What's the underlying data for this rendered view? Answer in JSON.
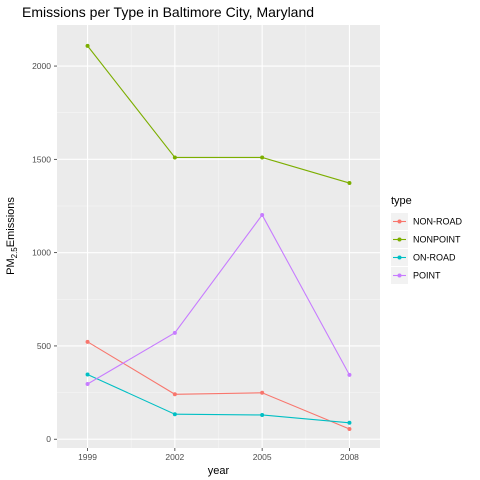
{
  "chart_data": {
    "type": "line",
    "title": "Emissions per Type in Baltimore City, Maryland",
    "xlabel": "year",
    "ylabel": "PM",
    "ylabel_sub": "2.5",
    "ylabel_tail": "Emissions",
    "x": [
      1999,
      2002,
      2005,
      2008
    ],
    "x_tick_labels": [
      "1999",
      "2002",
      "2005",
      "2008"
    ],
    "xlim": [
      1997.95,
      2009.05
    ],
    "y_ticks": [
      0,
      500,
      1000,
      1500,
      2000
    ],
    "y_tick_labels": [
      "0",
      "500",
      "1000",
      "1500",
      "2000"
    ],
    "ylim": [
      -47,
      2220
    ],
    "grid": true,
    "background": "#ebebeb",
    "legend": {
      "title": "type",
      "position": "right"
    },
    "series": [
      {
        "name": "NON-ROAD",
        "color": "#F8766D",
        "values": [
          522,
          241,
          249,
          55
        ]
      },
      {
        "name": "NONPOINT",
        "color": "#7CAE00",
        "values": [
          2108,
          1510,
          1510,
          1373
        ]
      },
      {
        "name": "ON-ROAD",
        "color": "#00BFC4",
        "values": [
          347,
          134,
          130,
          88
        ]
      },
      {
        "name": "POINT",
        "color": "#C77CFF",
        "values": [
          296,
          570,
          1202,
          345
        ]
      }
    ]
  }
}
